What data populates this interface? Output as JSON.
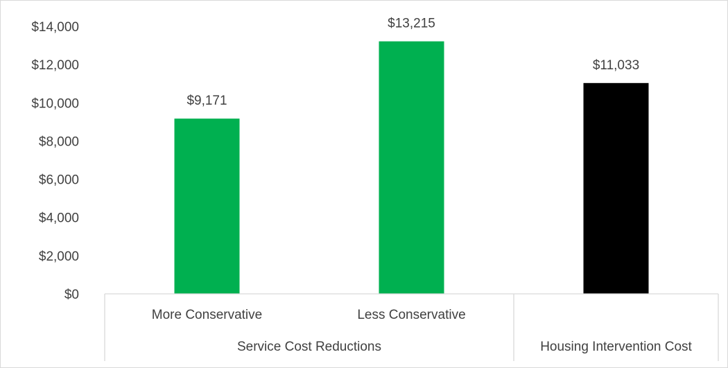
{
  "chart_data": {
    "type": "bar",
    "title": "",
    "xlabel": "",
    "ylabel": "",
    "ylim": [
      0,
      14000
    ],
    "y_tick_step": 2000,
    "y_tick_labels": [
      "$0",
      "$2,000",
      "$4,000",
      "$6,000",
      "$8,000",
      "$10,000",
      "$12,000",
      "$14,000"
    ],
    "grid": false,
    "legend": "none",
    "categories": [
      "More Conservative",
      "Less Conservative",
      ""
    ],
    "groups": [
      {
        "label": "Service Cost Reductions",
        "span": [
          0,
          1
        ]
      },
      {
        "label": "Housing Intervention Cost",
        "span": [
          2,
          2
        ]
      }
    ],
    "values": [
      9171,
      13215,
      11033
    ],
    "value_labels": [
      "$9,171",
      "$13,215",
      "$11,033"
    ],
    "colors": [
      "#00b050",
      "#00b050",
      "#000000"
    ]
  }
}
